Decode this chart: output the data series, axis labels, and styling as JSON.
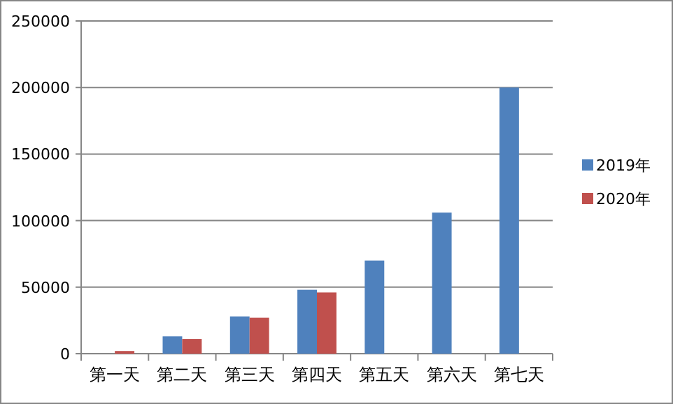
{
  "chart_data": {
    "type": "bar",
    "categories": [
      "第一天",
      "第二天",
      "第三天",
      "第四天",
      "第五天",
      "第六天",
      "第七天"
    ],
    "series": [
      {
        "name": "2019年",
        "color": "#4f81bd",
        "values": [
          null,
          13000,
          28000,
          48000,
          70000,
          106000,
          200000
        ]
      },
      {
        "name": "2020年",
        "color": "#c0504d",
        "values": [
          2000,
          11000,
          27000,
          46000,
          null,
          null,
          null
        ]
      }
    ],
    "ylim": [
      0,
      250000
    ],
    "yticks": [
      0,
      50000,
      100000,
      150000,
      200000,
      250000
    ],
    "grid": "y",
    "legend": "right"
  }
}
